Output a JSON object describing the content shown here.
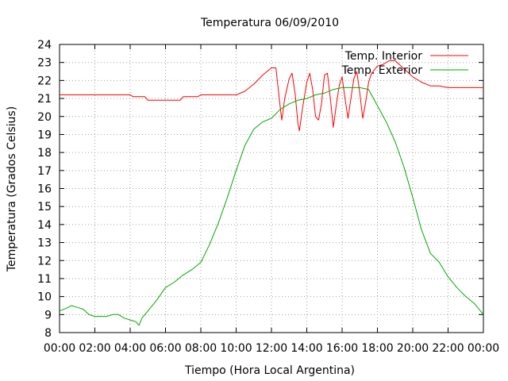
{
  "chart_data": {
    "type": "line",
    "title": "Temperatura 06/09/2010",
    "xlabel": "Tiempo (Hora Local Argentina)",
    "ylabel": "Temperatura (Grados Celsius)",
    "xlim": [
      "00:00",
      "24:00"
    ],
    "ylim": [
      8,
      24
    ],
    "x_ticks": [
      "00:00",
      "02:00",
      "04:00",
      "06:00",
      "08:00",
      "10:00",
      "12:00",
      "14:00",
      "16:00",
      "18:00",
      "20:00",
      "22:00",
      "00:00"
    ],
    "y_ticks": [
      8,
      9,
      10,
      11,
      12,
      13,
      14,
      15,
      16,
      17,
      18,
      19,
      20,
      21,
      22,
      23,
      24
    ],
    "grid": true,
    "legend_position": "top-right",
    "series": [
      {
        "name": "Temp. Interior",
        "color": "#ff0000",
        "x": [
          "00:00",
          "04:00",
          "04:10",
          "04:50",
          "05:00",
          "06:50",
          "07:00",
          "07:50",
          "08:00",
          "10:00",
          "10:30",
          "11:00",
          "11:30",
          "12:00",
          "12:15",
          "12:30",
          "12:35",
          "12:45",
          "13:00",
          "13:10",
          "13:20",
          "13:30",
          "13:35",
          "13:45",
          "14:00",
          "14:10",
          "14:20",
          "14:30",
          "14:40",
          "14:50",
          "15:00",
          "15:10",
          "15:20",
          "15:30",
          "15:40",
          "15:50",
          "16:00",
          "16:10",
          "16:20",
          "16:30",
          "16:40",
          "16:50",
          "17:00",
          "17:10",
          "17:20",
          "17:30",
          "17:40",
          "17:50",
          "18:00",
          "18:20",
          "18:40",
          "19:00",
          "19:20",
          "19:40",
          "20:00",
          "20:30",
          "21:00",
          "21:30",
          "22:00",
          "23:00",
          "24:00"
        ],
        "y": [
          21.2,
          21.2,
          21.1,
          21.1,
          20.9,
          20.9,
          21.1,
          21.1,
          21.2,
          21.2,
          21.4,
          21.8,
          22.3,
          22.7,
          22.7,
          20.5,
          19.8,
          21.0,
          22.1,
          22.4,
          21.3,
          19.6,
          19.2,
          20.4,
          21.9,
          22.4,
          21.5,
          20.0,
          19.8,
          20.7,
          22.3,
          22.4,
          21.0,
          19.4,
          20.6,
          21.7,
          22.2,
          21.0,
          19.9,
          21.0,
          22.1,
          22.5,
          21.3,
          19.9,
          20.8,
          21.9,
          22.4,
          22.6,
          22.8,
          22.9,
          23.1,
          23.1,
          22.8,
          22.5,
          22.2,
          21.9,
          21.7,
          21.7,
          21.6,
          21.6,
          21.6
        ]
      },
      {
        "name": "Temp. Exterior",
        "color": "#00aa00",
        "x": [
          "00:00",
          "00:30",
          "00:40",
          "01:00",
          "01:20",
          "01:40",
          "02:00",
          "02:20",
          "02:40",
          "03:00",
          "03:20",
          "03:40",
          "04:00",
          "04:20",
          "04:30",
          "04:40",
          "05:00",
          "05:30",
          "06:00",
          "06:30",
          "07:00",
          "07:30",
          "08:00",
          "08:30",
          "09:00",
          "09:30",
          "10:00",
          "10:30",
          "11:00",
          "11:30",
          "12:00",
          "12:30",
          "13:00",
          "13:30",
          "14:00",
          "14:30",
          "15:00",
          "15:30",
          "16:00",
          "16:30",
          "17:00",
          "17:30",
          "18:00",
          "18:30",
          "19:00",
          "19:30",
          "20:00",
          "20:30",
          "21:00",
          "21:30",
          "22:00",
          "22:30",
          "23:00",
          "23:30",
          "24:00"
        ],
        "y": [
          9.2,
          9.4,
          9.5,
          9.4,
          9.3,
          9.0,
          8.9,
          8.9,
          8.9,
          9.0,
          9.0,
          8.8,
          8.7,
          8.6,
          8.4,
          8.8,
          9.2,
          9.8,
          10.5,
          10.8,
          11.2,
          11.5,
          11.9,
          12.9,
          14.1,
          15.5,
          17.0,
          18.4,
          19.3,
          19.7,
          19.9,
          20.4,
          20.7,
          20.9,
          21.0,
          21.2,
          21.3,
          21.5,
          21.6,
          21.6,
          21.6,
          21.5,
          20.6,
          19.7,
          18.6,
          17.2,
          15.5,
          13.7,
          12.4,
          11.9,
          11.1,
          10.5,
          10.0,
          9.6,
          9.0
        ]
      }
    ]
  }
}
